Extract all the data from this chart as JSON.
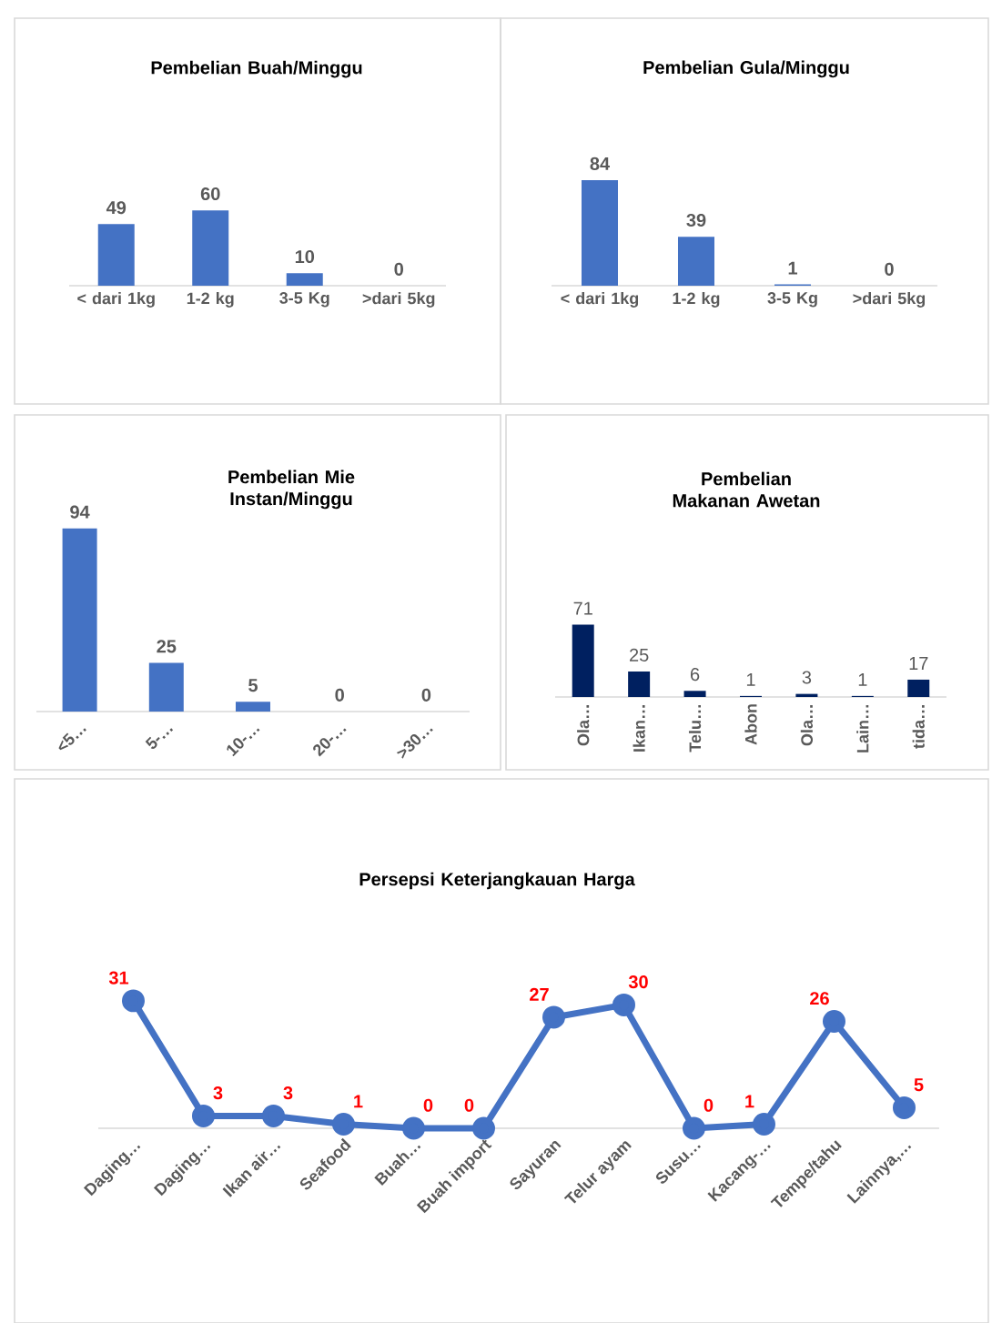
{
  "chart_data": [
    {
      "type": "bar",
      "title": "Pembelian Buah/Minggu",
      "categories": [
        "< dari 1kg",
        "1-2  kg",
        "3-5  Kg",
        ">dari 5kg"
      ],
      "values": [
        49,
        60,
        10,
        0
      ],
      "color": "#4472c4",
      "data_labels": true
    },
    {
      "type": "bar",
      "title": "Pembelian Gula/Minggu",
      "categories": [
        "< dari 1kg",
        "1-2  kg",
        "3-5  Kg",
        ">dari 5kg"
      ],
      "values": [
        84,
        39,
        1,
        0
      ],
      "color": "#4472c4",
      "data_labels": true
    },
    {
      "type": "bar",
      "title": "Pembelian Mie Instan/Minggu",
      "categories": [
        "<5…",
        "5-…",
        "10-…",
        "20-…",
        ">30…"
      ],
      "values": [
        94,
        25,
        5,
        0,
        0
      ],
      "color": "#4472c4",
      "data_labels": true
    },
    {
      "type": "bar",
      "title": "Pembelian Makanan Awetan",
      "categories": [
        "Ola…",
        "Ikan…",
        "Telu…",
        "Abon",
        "Ola…",
        "Lain…",
        "tida…"
      ],
      "values": [
        71,
        25,
        6,
        1,
        3,
        1,
        17
      ],
      "color": "#002060",
      "data_labels": true
    },
    {
      "type": "line",
      "title": "Persepsi Keterjangkauan Harga",
      "categories": [
        "Daging…",
        "Daging…",
        "Ikan air…",
        "Seafood",
        "Buah…",
        "Buah import",
        "Sayuran",
        "Telur ayam",
        "Susu…",
        "Kacang-…",
        "Tempe/tahu",
        "Lainnya,…"
      ],
      "values": [
        31,
        3,
        3,
        1,
        0,
        0,
        27,
        30,
        0,
        1,
        26,
        5
      ],
      "color": "#4472c4",
      "marker": "circle",
      "data_labels": true
    }
  ]
}
